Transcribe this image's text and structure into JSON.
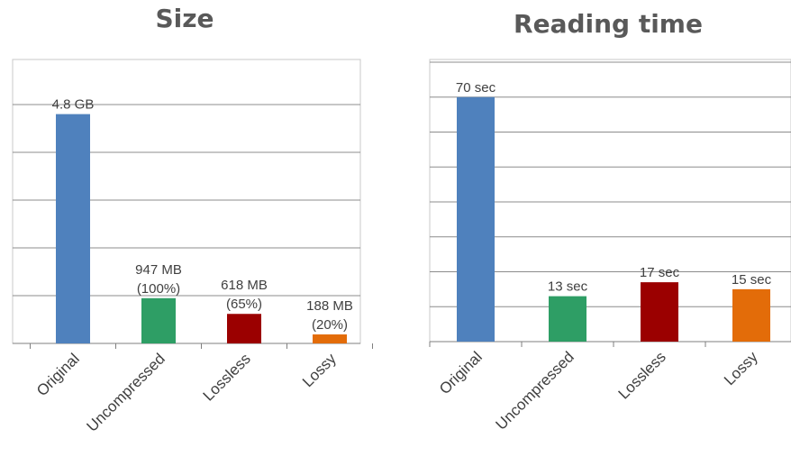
{
  "chart_data": [
    {
      "type": "bar",
      "title": "Size",
      "categories": [
        "Original",
        "Uncompressed",
        "Lossless",
        "Lossy"
      ],
      "unit": "GB",
      "values": [
        4.8,
        0.947,
        0.618,
        0.188
      ],
      "data_labels": [
        [
          "4.8 GB"
        ],
        [
          "947 MB",
          "(100%)"
        ],
        [
          "618 MB",
          "(65%)"
        ],
        [
          "188 MB",
          "(20%)"
        ]
      ],
      "colors": [
        "#4F81BD",
        "#2E9E65",
        "#9B0000",
        "#E36C09"
      ],
      "ylim": [
        0,
        6
      ],
      "grid": true,
      "axis_labels_shown": false
    },
    {
      "type": "bar",
      "title": "Reading time",
      "categories": [
        "Original",
        "Uncompressed",
        "Lossless",
        "Lossy"
      ],
      "unit": "sec",
      "values": [
        70,
        13,
        17,
        15
      ],
      "data_labels": [
        [
          "70 sec"
        ],
        [
          "13 sec"
        ],
        [
          "17 sec"
        ],
        [
          "15 sec"
        ]
      ],
      "colors": [
        "#4F81BD",
        "#2E9E65",
        "#9B0000",
        "#E36C09"
      ],
      "ylim": [
        0,
        80
      ],
      "grid": true,
      "axis_labels_shown": false
    }
  ]
}
